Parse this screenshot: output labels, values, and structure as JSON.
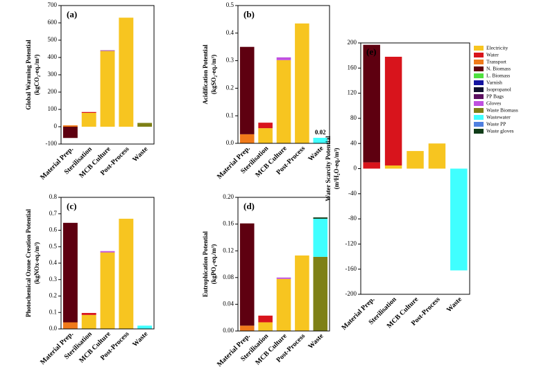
{
  "chart_data": [
    {
      "type": "bar",
      "label": "(a)",
      "ylabel": [
        "Global Warming Potential",
        "(kgCO₂-eq./m³)"
      ],
      "categories": [
        "Material Prep.",
        "Sterilisation",
        "MCB Culture",
        "Post-Process",
        "Waste"
      ],
      "ylim": [
        -100,
        700
      ],
      "yticks": [
        -100,
        0,
        100,
        200,
        300,
        400,
        500,
        600,
        700
      ],
      "series": [
        {
          "color": "#f7c520",
          "values": [
            0,
            80,
            437,
            630,
            0
          ]
        },
        {
          "color": "#d8141c",
          "values": [
            0,
            5,
            0,
            0,
            0
          ]
        },
        {
          "color": "#f07a1a",
          "values": [
            8,
            0,
            0,
            0,
            0
          ]
        },
        {
          "color": "#5e0010",
          "values": [
            -65,
            0,
            0,
            0,
            0
          ]
        },
        {
          "color": "#b060a0",
          "values": [
            0,
            0,
            5,
            0,
            0
          ]
        },
        {
          "color": "#7e8016",
          "values": [
            0,
            0,
            0,
            0,
            22
          ]
        }
      ]
    },
    {
      "type": "bar",
      "label": "(b)",
      "ylabel": [
        "Acidification Potential",
        "(kgSO₂-eq./m³)"
      ],
      "categories": [
        "Material Prep.",
        "Sterilisation",
        "MCB Culture",
        "Post-Process",
        "Waste"
      ],
      "ylim": [
        0,
        0.5
      ],
      "yticks": [
        {
          "value": 0,
          "label": "0.0"
        },
        0.1,
        0.2,
        0.3,
        0.4,
        0.5
      ],
      "series": [
        {
          "color": "#f7c520",
          "values": [
            0,
            0.055,
            0.302,
            0.435,
            0
          ]
        },
        {
          "color": "#d8141c",
          "values": [
            0,
            0.02,
            0,
            0,
            0
          ]
        },
        {
          "color": "#f07a1a",
          "values": [
            0.033,
            0,
            0,
            0,
            0
          ]
        },
        {
          "color": "#5e0010",
          "values": [
            0.317,
            0,
            0,
            0,
            0
          ]
        },
        {
          "color": "#c050e0",
          "values": [
            0,
            0,
            0.01,
            0,
            0
          ]
        },
        {
          "color": "#40ffff",
          "values": [
            0,
            0,
            0,
            0,
            0.02
          ],
          "value_labels": [
            null,
            null,
            null,
            null,
            "0.02"
          ]
        }
      ]
    },
    {
      "type": "bar",
      "label": "(c)",
      "ylabel": [
        "Photochemical Ozone Creation Potential",
        "(kgNOx-eq./m³)"
      ],
      "categories": [
        "Material Prep.",
        "Sterilisation",
        "MCB Culture",
        "Post-Process",
        "Waste"
      ],
      "ylim": [
        0,
        0.8
      ],
      "yticks": [
        {
          "value": 0,
          "label": "0.0"
        },
        0.1,
        0.2,
        0.3,
        0.4,
        0.5,
        0.6,
        0.7,
        0.8
      ],
      "series": [
        {
          "color": "#f7c520",
          "values": [
            0,
            0.085,
            0.465,
            0.67,
            0
          ]
        },
        {
          "color": "#d8141c",
          "values": [
            0,
            0.012,
            0,
            0,
            0
          ]
        },
        {
          "color": "#f07a1a",
          "values": [
            0.04,
            0,
            0,
            0,
            0
          ]
        },
        {
          "color": "#5e0010",
          "values": [
            0.605,
            0,
            0,
            0,
            0
          ]
        },
        {
          "color": "#c050e0",
          "values": [
            0,
            0,
            0.008,
            0,
            0
          ]
        },
        {
          "color": "#40ffff",
          "values": [
            0,
            0,
            0,
            0,
            0.02
          ]
        }
      ]
    },
    {
      "type": "bar",
      "label": "(d)",
      "ylabel": [
        "Eutrophication Potential",
        "(kgPO₄-eq./m³)"
      ],
      "categories": [
        "Material Prep.",
        "Sterilisation",
        "MCB Culture",
        "Post-Process",
        "Waste"
      ],
      "ylim": [
        0,
        0.2
      ],
      "yticks": [
        {
          "value": 0,
          "label": "0.00"
        },
        0.04,
        0.08,
        0.12,
        0.16,
        {
          "value": 0.2,
          "label": "0.20"
        }
      ],
      "series": [
        {
          "color": "#f7c520",
          "values": [
            0,
            0.013,
            0.078,
            0.113,
            0
          ]
        },
        {
          "color": "#d8141c",
          "values": [
            0,
            0.01,
            0,
            0,
            0
          ]
        },
        {
          "color": "#f07a1a",
          "values": [
            0.008,
            0,
            0,
            0,
            0
          ]
        },
        {
          "color": "#5e0010",
          "values": [
            0.153,
            0,
            0,
            0,
            0
          ]
        },
        {
          "color": "#c050e0",
          "values": [
            0,
            0,
            0.002,
            0,
            0
          ]
        },
        {
          "color": "#7e8016",
          "values": [
            0,
            0,
            0,
            0,
            0.111
          ]
        },
        {
          "color": "#40ffff",
          "values": [
            0,
            0,
            0,
            0,
            0.057
          ]
        },
        {
          "color": "#103c18",
          "values": [
            0,
            0,
            0,
            0,
            0.002
          ]
        }
      ]
    },
    {
      "type": "bar",
      "label": "(e)",
      "ylabel": [
        "Water Scarcity Potential",
        "(m³H₂O-eq./m³)"
      ],
      "legend": "right",
      "categories": [
        "Material Prep.",
        "Sterilisation",
        "MCB Culture",
        "Post-Process",
        "Waste"
      ],
      "ylim": [
        -200,
        200
      ],
      "yticks": [
        -200,
        -160,
        -120,
        -80,
        -40,
        0,
        40,
        80,
        120,
        160,
        200
      ],
      "series": [
        {
          "name": "Electricity",
          "color": "#f7c520",
          "values": [
            0,
            5,
            28,
            40,
            0
          ]
        },
        {
          "name": "Water",
          "color": "#d8141c",
          "values": [
            10,
            173,
            0,
            0,
            0
          ]
        },
        {
          "name": "Transport",
          "color": "#f07a1a",
          "values": [
            0,
            0,
            0,
            0,
            0
          ]
        },
        {
          "name": "N. Biomass",
          "color": "#5e0010",
          "values": [
            187,
            0,
            0,
            0,
            0
          ]
        },
        {
          "name": "L. Biomass",
          "color": "#50e040",
          "values": [
            0,
            0,
            0,
            0,
            0
          ]
        },
        {
          "name": "Varnish",
          "color": "#1414a0",
          "values": [
            0,
            0,
            0,
            0,
            0
          ]
        },
        {
          "name": "Isopropanol",
          "color": "#10102c",
          "values": [
            0,
            0,
            0,
            0,
            0
          ]
        },
        {
          "name": "PP Bags",
          "color": "#5c1060",
          "values": [
            0,
            0,
            0,
            0,
            0
          ]
        },
        {
          "name": "Gloves",
          "color": "#c050e0",
          "values": [
            0,
            0,
            0,
            0,
            0
          ]
        },
        {
          "name": "Waste Biomass",
          "color": "#7e8016",
          "values": [
            0,
            0,
            0,
            0,
            0
          ]
        },
        {
          "name": "Wastewater",
          "color": "#40ffff",
          "values": [
            0,
            0,
            0,
            0,
            -162
          ]
        },
        {
          "name": "Waste PP",
          "color": "#5080e0",
          "values": [
            0,
            0,
            0,
            0,
            0
          ]
        },
        {
          "name": "Waste gloves",
          "color": "#103c18",
          "values": [
            0,
            0,
            0,
            0,
            0
          ]
        }
      ]
    }
  ]
}
